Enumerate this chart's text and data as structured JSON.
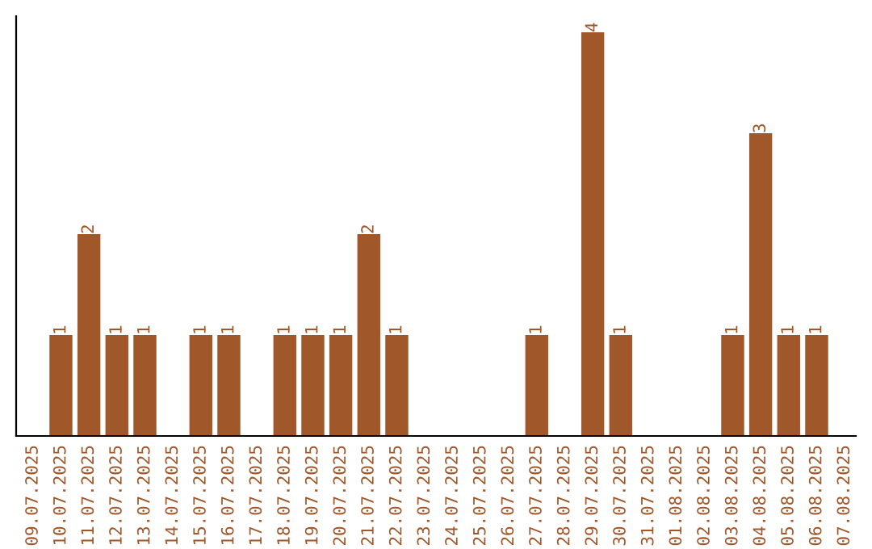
{
  "chart_data": {
    "type": "bar",
    "categories": [
      "09.07.2025",
      "10.07.2025",
      "11.07.2025",
      "12.07.2025",
      "13.07.2025",
      "14.07.2025",
      "15.07.2025",
      "16.07.2025",
      "17.07.2025",
      "18.07.2025",
      "19.07.2025",
      "20.07.2025",
      "21.07.2025",
      "22.07.2025",
      "23.07.2025",
      "24.07.2025",
      "25.07.2025",
      "26.07.2025",
      "27.07.2025",
      "28.07.2025",
      "29.07.2025",
      "30.07.2025",
      "31.07.2025",
      "01.08.2025",
      "02.08.2025",
      "03.08.2025",
      "04.08.2025",
      "05.08.2025",
      "06.08.2025",
      "07.08.2025"
    ],
    "values": [
      0,
      1,
      2,
      1,
      1,
      0,
      1,
      1,
      0,
      1,
      1,
      1,
      2,
      1,
      0,
      0,
      0,
      0,
      1,
      0,
      4,
      1,
      0,
      0,
      0,
      1,
      3,
      1,
      1,
      0
    ],
    "value_labels": [
      null,
      "1",
      "2",
      "1",
      "1",
      null,
      "1",
      "1",
      null,
      "1",
      "1",
      "1",
      "2",
      "1",
      null,
      null,
      null,
      null,
      "1",
      null,
      "4",
      "1",
      null,
      null,
      null,
      "1",
      "3",
      "1",
      "1",
      null
    ],
    "color": "#a0572a",
    "tick_labels": "x",
    "grid": false,
    "legend": false
  }
}
